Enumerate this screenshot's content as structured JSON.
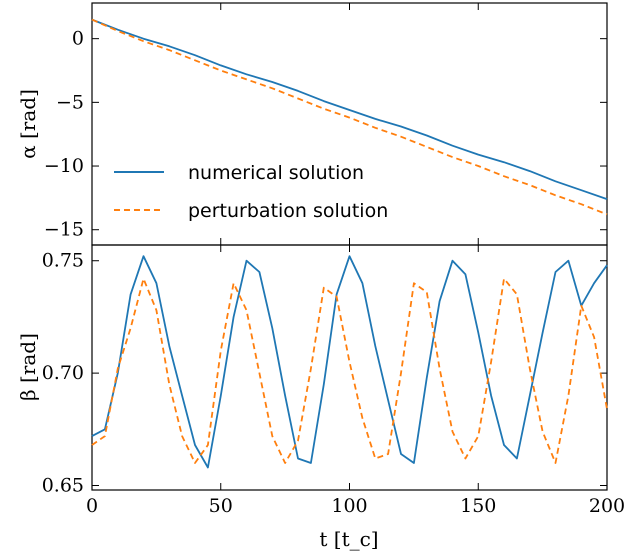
{
  "colors": {
    "numerical": "#1f77b4",
    "perturbation": "#ff7f0e",
    "axis": "#000000"
  },
  "chart_data": [
    {
      "type": "line",
      "panel": "top",
      "ylabel": "α [rad]",
      "xlim": [
        0,
        200
      ],
      "ylim": [
        -16.2,
        2.8
      ],
      "yticks": [
        0,
        -5,
        -10,
        -15
      ],
      "ytick_labels": [
        "0",
        "−5",
        "−10",
        "−15"
      ],
      "legend": {
        "placement": "lower-left",
        "entries": [
          "numerical solution",
          "perturbation solution"
        ]
      },
      "x": [
        0,
        10,
        20,
        30,
        40,
        50,
        60,
        70,
        80,
        90,
        100,
        110,
        120,
        130,
        140,
        150,
        160,
        170,
        180,
        190,
        200
      ],
      "series": [
        {
          "name": "numerical solution",
          "style": "solid",
          "values": [
            1.5,
            0.7,
            0.0,
            -0.6,
            -1.3,
            -2.1,
            -2.8,
            -3.4,
            -4.1,
            -4.9,
            -5.6,
            -6.3,
            -6.9,
            -7.6,
            -8.4,
            -9.1,
            -9.7,
            -10.4,
            -11.2,
            -11.9,
            -12.6
          ]
        },
        {
          "name": "perturbation solution",
          "style": "dashed",
          "values": [
            1.5,
            0.6,
            -0.2,
            -0.9,
            -1.7,
            -2.5,
            -3.2,
            -3.9,
            -4.7,
            -5.5,
            -6.2,
            -7.0,
            -7.7,
            -8.5,
            -9.3,
            -10.0,
            -10.8,
            -11.5,
            -12.3,
            -13.0,
            -13.8
          ]
        }
      ]
    },
    {
      "type": "line",
      "panel": "bottom",
      "ylabel": "β [rad]",
      "xlabel": "t [t_c]",
      "xlim": [
        0,
        200
      ],
      "ylim": [
        0.648,
        0.757
      ],
      "xticks": [
        0,
        50,
        100,
        150,
        200
      ],
      "xtick_labels": [
        "0",
        "50",
        "100",
        "150",
        "200"
      ],
      "yticks": [
        0.65,
        0.7,
        0.75
      ],
      "ytick_labels": [
        "0.65",
        "0.70",
        "0.75"
      ],
      "x": [
        0,
        5,
        10,
        15,
        20,
        25,
        30,
        35,
        40,
        45,
        50,
        55,
        60,
        65,
        70,
        75,
        80,
        85,
        90,
        95,
        100,
        105,
        110,
        115,
        120,
        125,
        130,
        135,
        140,
        145,
        150,
        155,
        160,
        165,
        170,
        175,
        180,
        185,
        190,
        195,
        200
      ],
      "series": [
        {
          "name": "numerical solution",
          "style": "solid",
          "values": [
            0.672,
            0.675,
            0.7,
            0.735,
            0.752,
            0.74,
            0.712,
            0.69,
            0.668,
            0.658,
            0.69,
            0.725,
            0.75,
            0.745,
            0.72,
            0.69,
            0.662,
            0.66,
            0.695,
            0.735,
            0.752,
            0.74,
            0.712,
            0.688,
            0.664,
            0.66,
            0.698,
            0.732,
            0.75,
            0.744,
            0.718,
            0.69,
            0.668,
            0.662,
            0.69,
            0.718,
            0.745,
            0.75,
            0.73,
            0.74,
            0.748
          ]
        },
        {
          "name": "perturbation solution",
          "style": "dashed",
          "values": [
            0.668,
            0.672,
            0.702,
            0.72,
            0.742,
            0.728,
            0.695,
            0.672,
            0.66,
            0.668,
            0.71,
            0.74,
            0.728,
            0.7,
            0.672,
            0.66,
            0.67,
            0.702,
            0.738,
            0.734,
            0.705,
            0.68,
            0.662,
            0.664,
            0.7,
            0.74,
            0.736,
            0.702,
            0.674,
            0.662,
            0.672,
            0.705,
            0.742,
            0.735,
            0.702,
            0.674,
            0.66,
            0.69,
            0.73,
            0.716,
            0.684
          ]
        }
      ]
    }
  ]
}
